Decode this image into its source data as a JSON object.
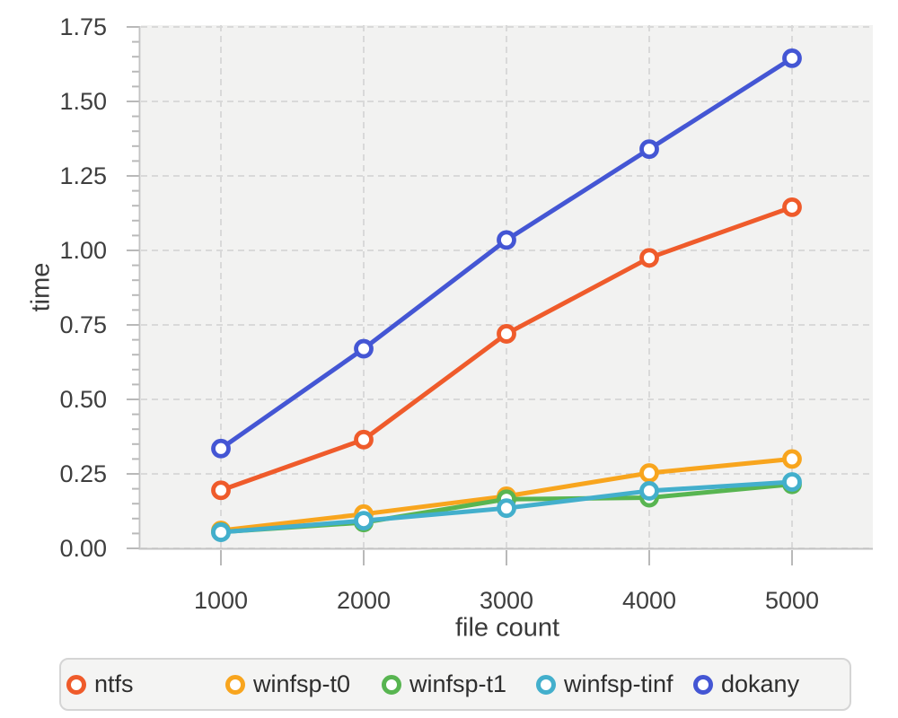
{
  "chart_data": {
    "type": "line",
    "title": "",
    "xlabel": "file count",
    "ylabel": "time",
    "x": [
      1000,
      2000,
      3000,
      4000,
      5000
    ],
    "x_tick_labels": [
      "1000",
      "2000",
      "3000",
      "4000",
      "5000"
    ],
    "y_tick_labels": [
      "0.00",
      "0.25",
      "0.50",
      "0.75",
      "1.00",
      "1.25",
      "1.50",
      "1.75"
    ],
    "ylim": [
      0,
      1.75
    ],
    "xlim": [
      440,
      5570
    ],
    "y_minor_tick_step": 0.05,
    "grid": "dashed-both-axes",
    "legend_position": "bottom",
    "marker": "open-circle",
    "plot_background": "#f2f2f1",
    "grid_color": "#d9d9d9",
    "axis_color": "#c3c3c3",
    "tick_color": "#b9b9b9",
    "text_color": "#3e3e3e",
    "series": [
      {
        "name": "ntfs",
        "color": "#ef5b2b",
        "values": [
          0.195,
          0.365,
          0.72,
          0.975,
          1.145
        ]
      },
      {
        "name": "winfsp-t0",
        "color": "#f8a51e",
        "values": [
          0.06,
          0.115,
          0.175,
          0.253,
          0.3
        ]
      },
      {
        "name": "winfsp-t1",
        "color": "#58b551",
        "values": [
          0.055,
          0.087,
          0.165,
          0.17,
          0.215
        ]
      },
      {
        "name": "winfsp-tinf",
        "color": "#43afcc",
        "values": [
          0.054,
          0.093,
          0.135,
          0.193,
          0.223
        ]
      },
      {
        "name": "dokany",
        "color": "#4456d4",
        "values": [
          0.335,
          0.67,
          1.035,
          1.34,
          1.645
        ]
      }
    ]
  }
}
